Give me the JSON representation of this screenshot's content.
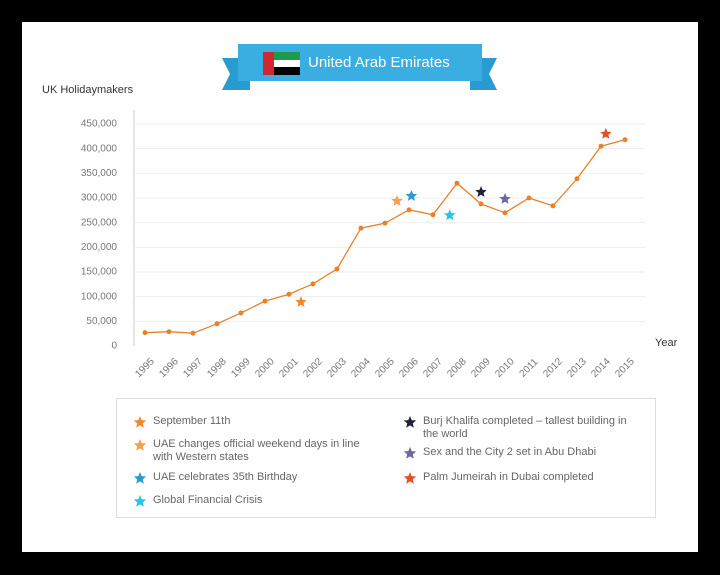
{
  "chart_data": {
    "type": "line",
    "title": "United Arab Emirates",
    "y_label": "UK Holidaymakers",
    "x_label": "Year",
    "x": [
      1995,
      1996,
      1997,
      1998,
      1999,
      2000,
      2001,
      2002,
      2003,
      2004,
      2005,
      2006,
      2007,
      2008,
      2009,
      2010,
      2011,
      2012,
      2013,
      2014,
      2015
    ],
    "series": [
      {
        "name": "UK Holidaymakers",
        "color": "#e8822a",
        "values": [
          27000,
          29000,
          26000,
          45000,
          67000,
          91000,
          105000,
          126000,
          156000,
          239000,
          249000,
          276000,
          266000,
          330000,
          288000,
          270000,
          300000,
          284000,
          339000,
          405000,
          418000
        ]
      }
    ],
    "events": [
      {
        "name": "September 11th",
        "color": "#f0892a",
        "x": 2001.5,
        "y": 89000
      },
      {
        "name": "UAE changes official weekend days in line with Western states",
        "color": "#f5a04a",
        "x": 2005.5,
        "y": 294000
      },
      {
        "name": "UAE celebrates 35th Birthday",
        "color": "#2a9bd1",
        "x": 2006.1,
        "y": 304000
      },
      {
        "name": "Global Financial Crisis",
        "color": "#29c3e6",
        "x": 2007.7,
        "y": 265000
      },
      {
        "name": "Burj Khalifa completed – tallest building in the world",
        "color": "#1f2140",
        "x": 2009,
        "y": 312000
      },
      {
        "name": "Sex and the City 2 set in Abu Dhabi",
        "color": "#6b6aa0",
        "x": 2010,
        "y": 298000
      },
      {
        "name": "Palm Jumeirah in Dubai completed",
        "color": "#e0502a",
        "x": 2014.2,
        "y": 430000
      }
    ],
    "xlim": [
      1995,
      2015
    ],
    "xticks": [
      1995,
      1996,
      1997,
      1998,
      1999,
      2000,
      2001,
      2002,
      2003,
      2004,
      2005,
      2006,
      2007,
      2008,
      2009,
      2010,
      2011,
      2012,
      2013,
      2014,
      2015
    ],
    "ylim": [
      0,
      450000
    ],
    "yticks": [
      0,
      {
        "value": 50000,
        "label": "50,000"
      },
      {
        "value": 100000,
        "label": "100,000"
      },
      {
        "value": 150000,
        "label": "150,000"
      },
      {
        "value": 200000,
        "label": "200,000"
      },
      {
        "value": 250000,
        "label": "250,000"
      },
      {
        "value": 300000,
        "label": "300,000"
      },
      {
        "value": 350000,
        "label": "350,000"
      },
      {
        "value": 400000,
        "label": "400,000"
      },
      {
        "value": 450000,
        "label": "450,000"
      }
    ],
    "grid": true
  }
}
